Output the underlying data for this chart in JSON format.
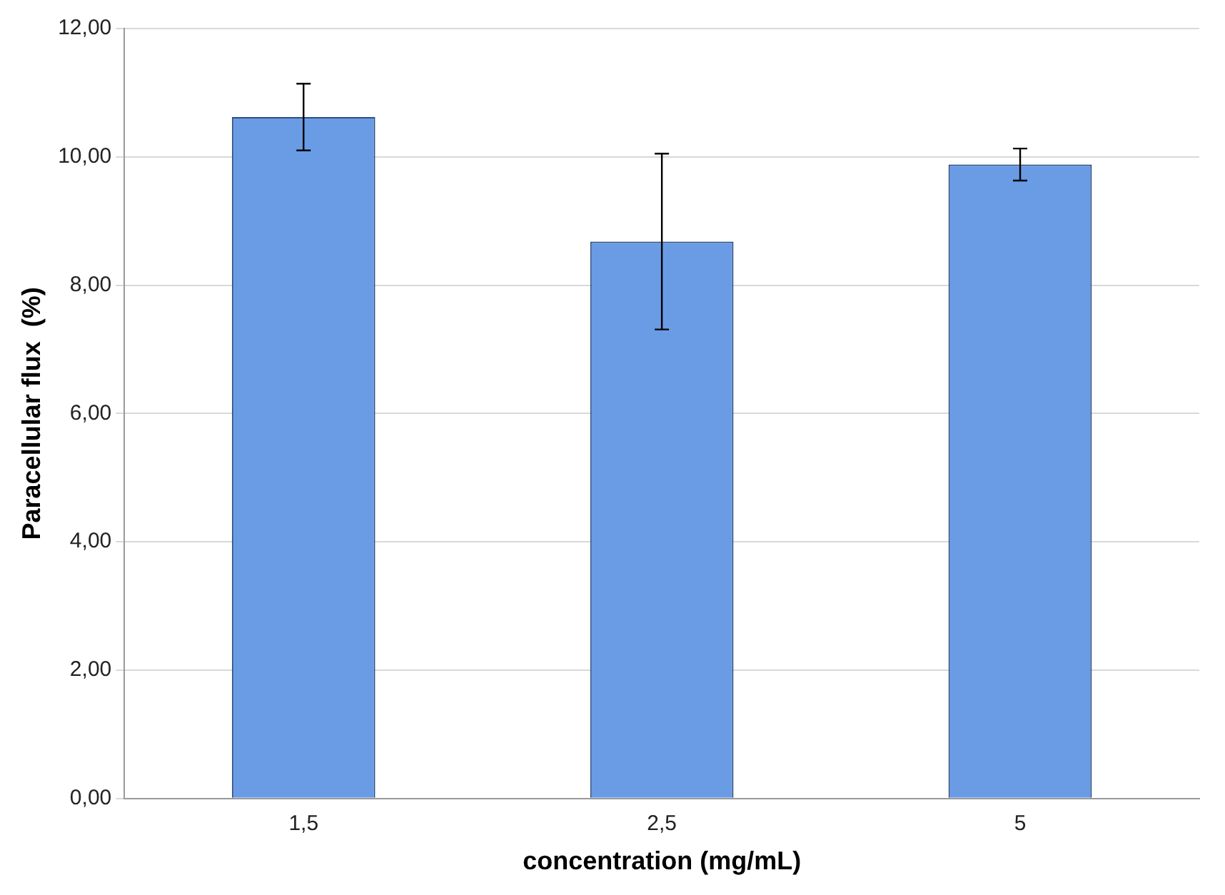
{
  "chart_data": {
    "type": "bar",
    "xlabel": "concentration (mg/mL)",
    "ylabel": "Paracellular flux  (%)",
    "categories": [
      "1,5",
      "2,5",
      "5"
    ],
    "values": [
      10.62,
      8.68,
      9.88
    ],
    "errors": [
      0.52,
      1.37,
      0.25
    ],
    "color": "#6a9ce6",
    "ylim": [
      0,
      12
    ],
    "yticks": [
      {
        "value": 0,
        "label": "0,00"
      },
      {
        "value": 2,
        "label": "2,00"
      },
      {
        "value": 4,
        "label": "4,00"
      },
      {
        "value": 6,
        "label": "6,00"
      },
      {
        "value": 8,
        "label": "8,00"
      },
      {
        "value": 10,
        "label": "10,00"
      },
      {
        "value": 12,
        "label": "12,00"
      }
    ],
    "grid": "y"
  }
}
